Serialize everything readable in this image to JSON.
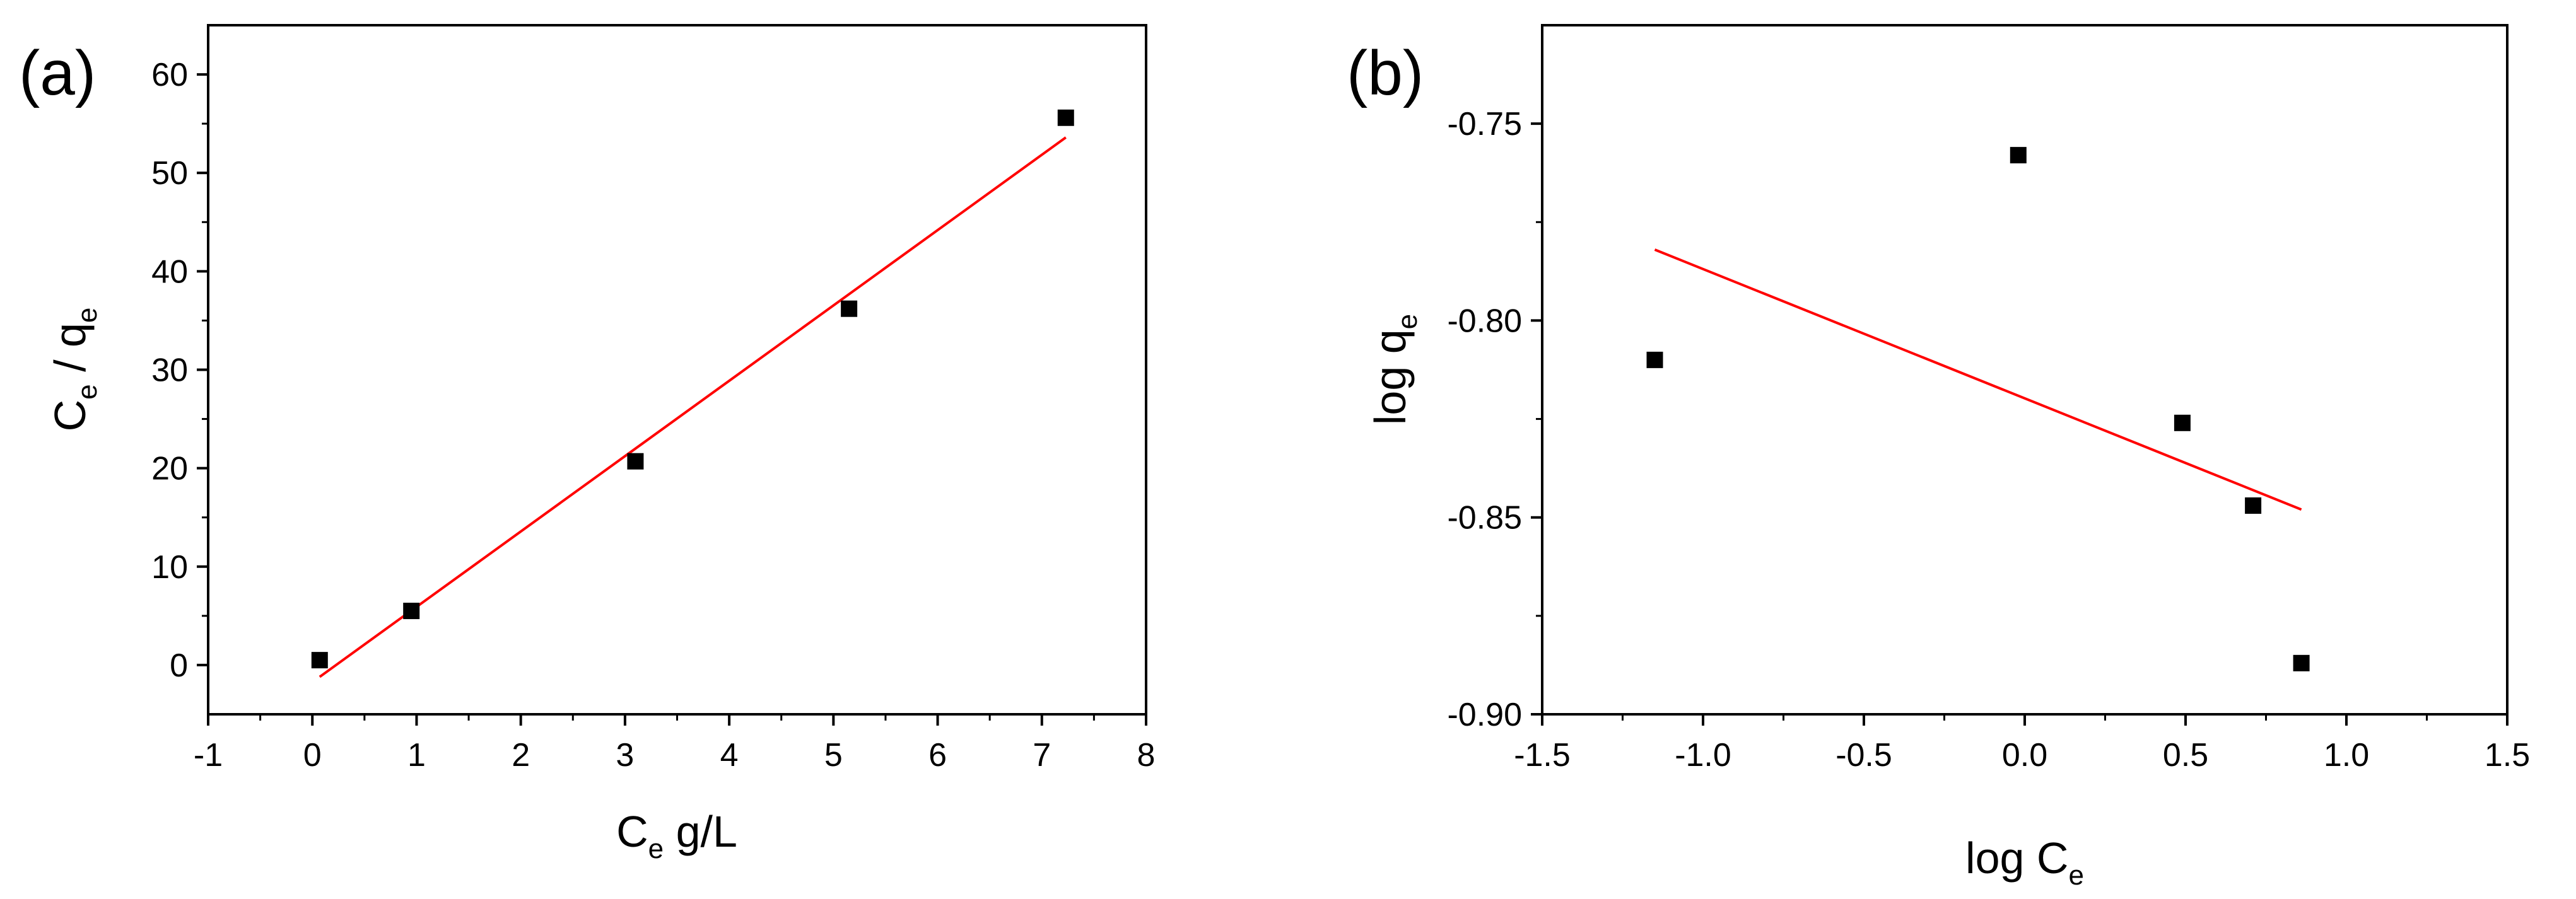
{
  "chart_data": [
    {
      "panel_label": "(a)",
      "type": "scatter",
      "xlabel_main": "C",
      "xlabel_sub": "e",
      "xlabel_suffix": " g/L",
      "ylabel_main1": "C",
      "ylabel_sub1": "e",
      "ylabel_mid": " / q",
      "ylabel_sub2": "e",
      "xlim": [
        -1,
        8
      ],
      "ylim": [
        -5,
        65
      ],
      "xticks": [
        -1,
        0,
        1,
        2,
        3,
        4,
        5,
        6,
        7,
        8
      ],
      "yticks": [
        0,
        10,
        20,
        30,
        40,
        50,
        60
      ],
      "grid": false,
      "points": {
        "x": [
          0.07,
          0.95,
          3.1,
          5.15,
          7.23
        ],
        "y": [
          0.5,
          5.5,
          20.7,
          36.2,
          55.6
        ]
      },
      "fit_line": {
        "x": [
          0.07,
          7.23
        ],
        "y": [
          -1.2,
          53.6
        ],
        "color": "#ff0000"
      }
    },
    {
      "panel_label": "(b)",
      "type": "scatter",
      "xlabel_main": "log C",
      "xlabel_sub": "e",
      "ylabel_main": "log q",
      "ylabel_sub": "e",
      "xlim": [
        -1.5,
        1.5
      ],
      "ylim": [
        -0.9,
        -0.725
      ],
      "xticks": [
        -1.5,
        -1.0,
        -0.5,
        0.0,
        0.5,
        1.0,
        1.5
      ],
      "xtick_labels": [
        "-1.5",
        "-1.0",
        "-0.5",
        "0.0",
        "0.5",
        "1.0",
        "1.5"
      ],
      "yticks": [
        -0.9,
        -0.85,
        -0.8,
        -0.75
      ],
      "ytick_labels": [
        "-0.90",
        "-0.85",
        "-0.80",
        "-0.75"
      ],
      "grid": false,
      "points": {
        "x": [
          -1.15,
          -0.02,
          0.49,
          0.71,
          0.86
        ],
        "y": [
          -0.81,
          -0.758,
          -0.826,
          -0.847,
          -0.887
        ]
      },
      "fit_line": {
        "x": [
          -1.15,
          0.86
        ],
        "y": [
          -0.782,
          -0.848
        ],
        "color": "#ff0000"
      }
    }
  ]
}
